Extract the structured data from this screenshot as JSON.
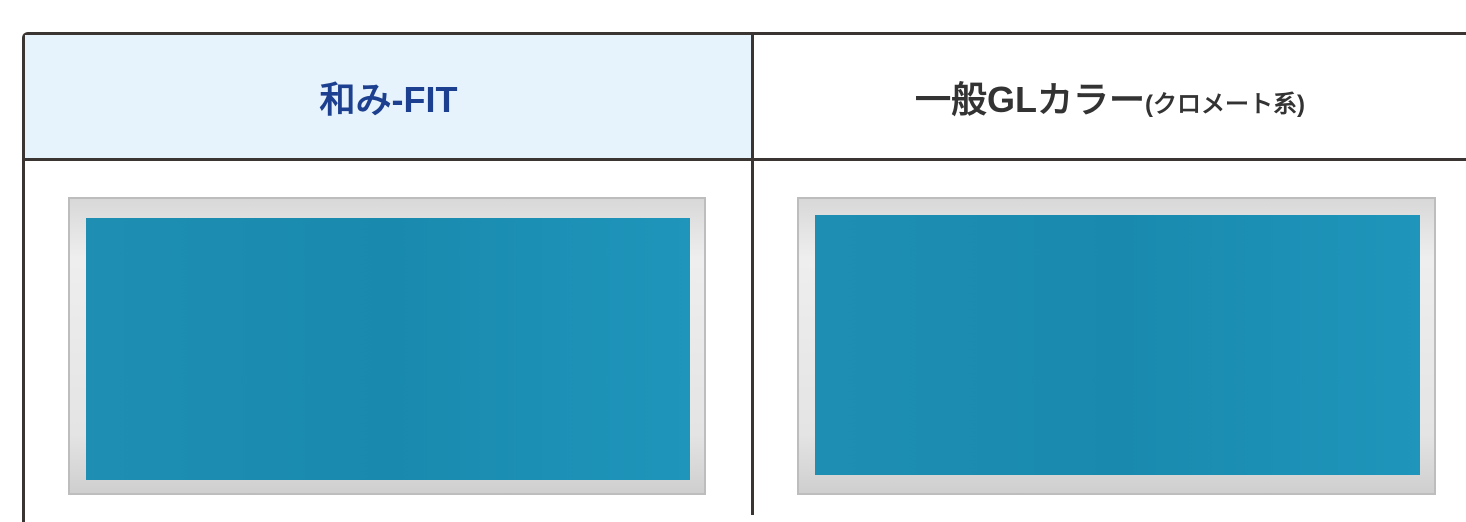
{
  "table": {
    "header": [
      {
        "label": "和み-FIT"
      },
      {
        "label": "一般GLカラー",
        "note": "(クロメート系)"
      }
    ]
  }
}
